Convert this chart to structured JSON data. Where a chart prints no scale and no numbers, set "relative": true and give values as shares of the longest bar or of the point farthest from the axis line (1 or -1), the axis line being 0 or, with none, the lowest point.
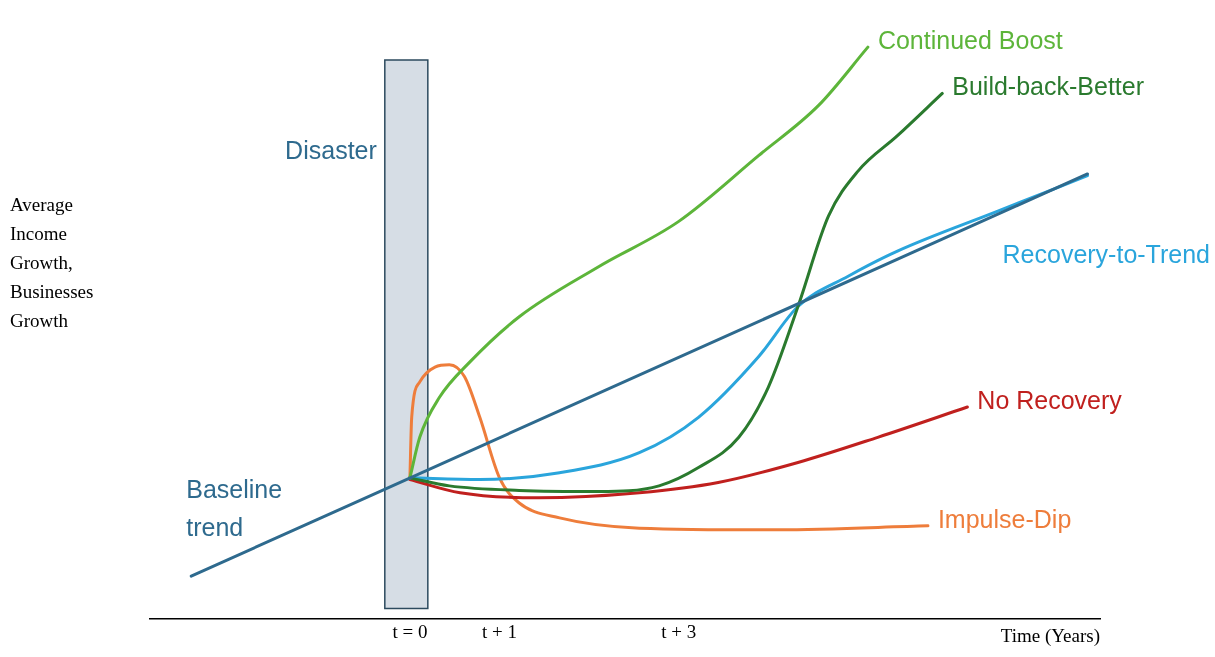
{
  "chart_data": {
    "type": "line",
    "relative": true,
    "ylabel": "Average Income Growth, Businesses Growth",
    "xlabel": "Time (Years)",
    "xlim": [
      -2.9,
      7.7
    ],
    "xticks": [
      {
        "value": 0,
        "label": "t = 0"
      },
      {
        "value": 1,
        "label": "t + 1"
      },
      {
        "value": 3,
        "label": "t + 3"
      }
    ],
    "grid": false,
    "legend": false,
    "marker": "none",
    "line_style": "solid",
    "bands": [
      {
        "axis": "x",
        "from": -0.28,
        "to": 0.2,
        "label": "Disaster",
        "color": "#d6dde5"
      }
    ],
    "series": [
      {
        "name": "Baseline trend",
        "color": "#2e6a8e",
        "x": [
          -2.44,
          7.56
        ],
        "values": [
          0.074,
          0.778
        ]
      },
      {
        "name": "Continued Boost",
        "color": "#5db53a",
        "x": [
          0,
          0.11,
          0.33,
          0.67,
          1.22,
          2.11,
          3.0,
          3.89,
          4.56,
          5.11
        ],
        "values": [
          0.246,
          0.317,
          0.387,
          0.449,
          0.528,
          0.616,
          0.695,
          0.81,
          0.898,
          1
        ]
      },
      {
        "name": "Build-back-Better",
        "color": "#2a7a2e",
        "x": [
          0,
          0.44,
          1.22,
          2.11,
          2.78,
          3.22,
          3.67,
          4.0,
          4.33,
          4.67,
          5.0,
          5.44,
          5.94
        ],
        "values": [
          0.246,
          0.232,
          0.224,
          0.222,
          0.232,
          0.264,
          0.317,
          0.405,
          0.546,
          0.704,
          0.783,
          0.845,
          0.919
        ]
      },
      {
        "name": "Recovery-to-Trend",
        "color": "#2aa5dc",
        "x": [
          0,
          0.78,
          1.67,
          2.56,
          3.22,
          3.89,
          4.33,
          4.89,
          5.44,
          6.56,
          7.56
        ],
        "values": [
          0.246,
          0.243,
          0.255,
          0.29,
          0.352,
          0.458,
          0.546,
          0.599,
          0.643,
          0.713,
          0.775
        ]
      },
      {
        "name": "No Recovery",
        "color": "#c0201e",
        "x": [
          0,
          0.56,
          1.44,
          2.56,
          3.44,
          4.33,
          5.22,
          6.22
        ],
        "values": [
          0.243,
          0.22,
          0.211,
          0.22,
          0.238,
          0.273,
          0.317,
          0.37
        ]
      },
      {
        "name": "Impulse-Dip",
        "color": "#ee7d3b",
        "x": [
          0,
          0.02,
          0.11,
          0.28,
          0.44,
          0.61,
          0.78,
          1.0,
          1.22,
          1.67,
          2.56,
          4.11,
          5.78
        ],
        "values": [
          0.246,
          0.352,
          0.414,
          0.44,
          0.444,
          0.423,
          0.352,
          0.246,
          0.202,
          0.176,
          0.158,
          0.155,
          0.162
        ]
      }
    ]
  }
}
